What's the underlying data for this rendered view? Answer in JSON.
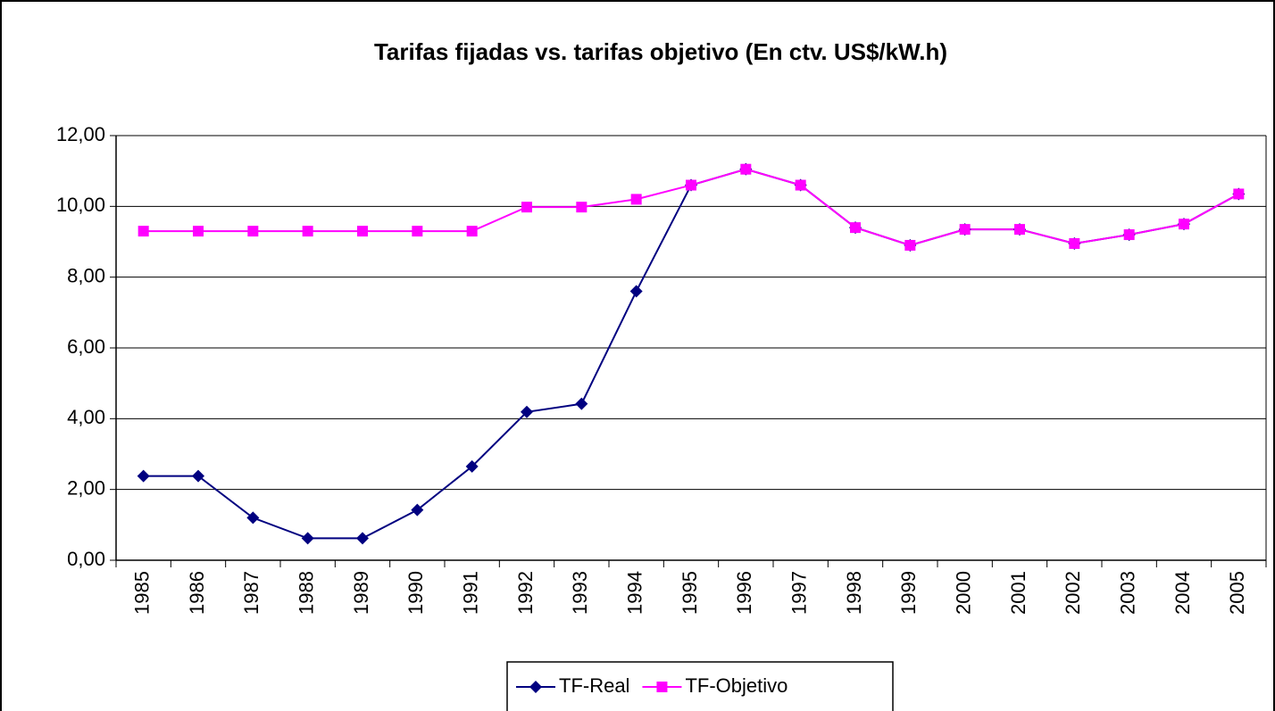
{
  "chart_data": {
    "type": "line",
    "title": "Tarifas fijadas vs. tarifas objetivo (En ctv. US$/kW.h)",
    "categories": [
      "1985",
      "1986",
      "1987",
      "1988",
      "1989",
      "1990",
      "1991",
      "1992",
      "1993",
      "1994",
      "1995",
      "1996",
      "1997",
      "1998",
      "1999",
      "2000",
      "2001",
      "2002",
      "2003",
      "2004",
      "2005"
    ],
    "series": [
      {
        "name": "TF-Real",
        "color": "#000080",
        "marker": "diamond",
        "values": [
          2.38,
          2.38,
          1.2,
          0.62,
          0.62,
          1.42,
          2.65,
          4.19,
          4.42,
          7.6,
          10.6,
          11.05,
          10.6,
          9.4,
          8.9,
          9.35,
          9.35,
          8.95,
          9.2,
          9.5,
          10.35
        ]
      },
      {
        "name": "TF-Objetivo",
        "color": "#ff00ff",
        "marker": "square",
        "values": [
          9.3,
          9.3,
          9.3,
          9.3,
          9.3,
          9.3,
          9.3,
          9.98,
          9.98,
          10.2,
          10.6,
          11.05,
          10.6,
          9.4,
          8.9,
          9.35,
          9.35,
          8.95,
          9.2,
          9.5,
          10.35
        ]
      }
    ],
    "ylim": [
      0,
      12
    ],
    "yticks": [
      {
        "value": 0,
        "label": "0,00"
      },
      {
        "value": 2,
        "label": "2,00"
      },
      {
        "value": 4,
        "label": "4,00"
      },
      {
        "value": 6,
        "label": "6,00"
      },
      {
        "value": 8,
        "label": "8,00"
      },
      {
        "value": 10,
        "label": "10,00"
      },
      {
        "value": 12,
        "label": "12,00"
      }
    ],
    "grid": true,
    "legend": "bottom"
  }
}
